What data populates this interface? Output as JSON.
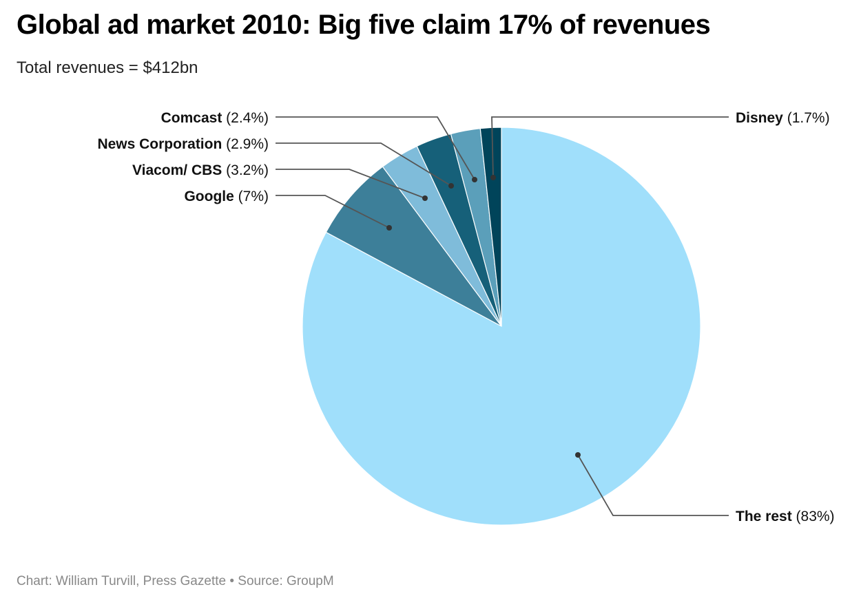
{
  "chart_data": {
    "type": "pie",
    "title": "Global ad market 2010: Big five claim 17% of revenues",
    "subtitle": "Total revenues = $412bn",
    "footer": "Chart: William Turvill, Press Gazette • Source: GroupM",
    "slices": [
      {
        "name": "The rest",
        "value": 83,
        "label": "(83%)",
        "color": "#a0dffb"
      },
      {
        "name": "Google",
        "value": 7,
        "label": "(7%)",
        "color": "#3d7f99"
      },
      {
        "name": "Viacom/ CBS",
        "value": 3.2,
        "label": "(3.2%)",
        "color": "#7fbcda"
      },
      {
        "name": "News Corporation",
        "value": 2.9,
        "label": "(2.9%)",
        "color": "#166079"
      },
      {
        "name": "Comcast",
        "value": 2.4,
        "label": "(2.4%)",
        "color": "#5b9fba"
      },
      {
        "name": "Disney",
        "value": 1.7,
        "label": "(1.7%)",
        "color": "#00445a"
      }
    ]
  }
}
